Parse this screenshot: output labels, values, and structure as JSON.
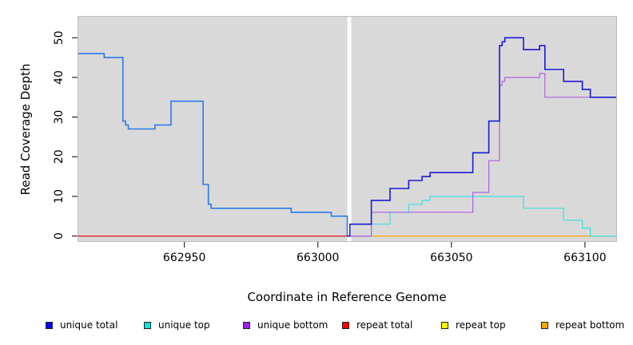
{
  "chart_data": {
    "type": "line",
    "title": "",
    "xlabel": "Coordinate in Reference Genome",
    "ylabel": "Read Coverage Depth",
    "xlim": [
      662910,
      663112
    ],
    "ylim": [
      -1.5,
      55.5
    ],
    "xticks": [
      662950,
      663000,
      663050,
      663100
    ],
    "yticks": [
      0,
      10,
      20,
      30,
      40,
      50
    ],
    "grid": false,
    "background": "#d9d9d9",
    "gap": {
      "x_start": 663011,
      "x_end": 663012.5,
      "color": "#ffffff"
    },
    "legend_position": "bottom",
    "series": [
      {
        "name": "unique total",
        "color": "#1a1ad6",
        "points": [
          [
            663011,
            0
          ],
          [
            663012,
            3
          ],
          [
            663020,
            9
          ],
          [
            663027,
            12
          ],
          [
            663034,
            14
          ],
          [
            663039,
            15
          ],
          [
            663042,
            16
          ],
          [
            663058,
            21
          ],
          [
            663064,
            29
          ],
          [
            663068,
            48
          ],
          [
            663069,
            49
          ],
          [
            663070,
            50
          ],
          [
            663077,
            47
          ],
          [
            663083,
            48
          ],
          [
            663085,
            42
          ],
          [
            663092,
            39
          ],
          [
            663099,
            37
          ],
          [
            663102,
            35
          ],
          [
            663112,
            35
          ]
        ]
      },
      {
        "name": "unique top",
        "color": "#40e0e0",
        "points": [
          [
            663011,
            0
          ],
          [
            663020,
            3
          ],
          [
            663027,
            6
          ],
          [
            663034,
            8
          ],
          [
            663039,
            9
          ],
          [
            663042,
            10
          ],
          [
            663077,
            7
          ],
          [
            663092,
            4
          ],
          [
            663099,
            2
          ],
          [
            663102,
            0
          ],
          [
            663112,
            0
          ]
        ]
      },
      {
        "name": "unique bottom",
        "color": "#b060e0",
        "points": [
          [
            663011,
            0
          ],
          [
            663020,
            6
          ],
          [
            663058,
            11
          ],
          [
            663064,
            19
          ],
          [
            663068,
            38
          ],
          [
            663069,
            39
          ],
          [
            663070,
            40
          ],
          [
            663083,
            41
          ],
          [
            663085,
            35
          ],
          [
            663112,
            35
          ]
        ]
      },
      {
        "name": "repeat total",
        "color": "#e0101a",
        "points": [
          [
            662910,
            0
          ],
          [
            663020,
            0
          ]
        ]
      },
      {
        "name": "repeat top",
        "color": "#ffff00",
        "points": []
      },
      {
        "name": "repeat bottom",
        "color": "#ffa500",
        "points": [
          [
            663020,
            0
          ],
          [
            663112,
            0
          ]
        ]
      },
      {
        "name": "",
        "color": "#2a7ae8",
        "points": [
          [
            662910,
            46
          ],
          [
            662920,
            45
          ],
          [
            662927,
            29
          ],
          [
            662928,
            28
          ],
          [
            662929,
            27
          ],
          [
            662939,
            28
          ],
          [
            662945,
            34
          ],
          [
            662957,
            13
          ],
          [
            662959,
            8
          ],
          [
            662960,
            7
          ],
          [
            662990,
            6
          ],
          [
            663005,
            5
          ],
          [
            663011,
            0
          ]
        ]
      }
    ]
  },
  "legend": {
    "items": [
      {
        "label": "unique total",
        "color": "#0000ff"
      },
      {
        "label": "unique top",
        "color": "#00e5e5"
      },
      {
        "label": "unique bottom",
        "color": "#a020f0"
      },
      {
        "label": "repeat total",
        "color": "#ff0000"
      },
      {
        "label": "repeat top",
        "color": "#ffff00"
      },
      {
        "label": "repeat bottom",
        "color": "#ffa500"
      }
    ]
  }
}
